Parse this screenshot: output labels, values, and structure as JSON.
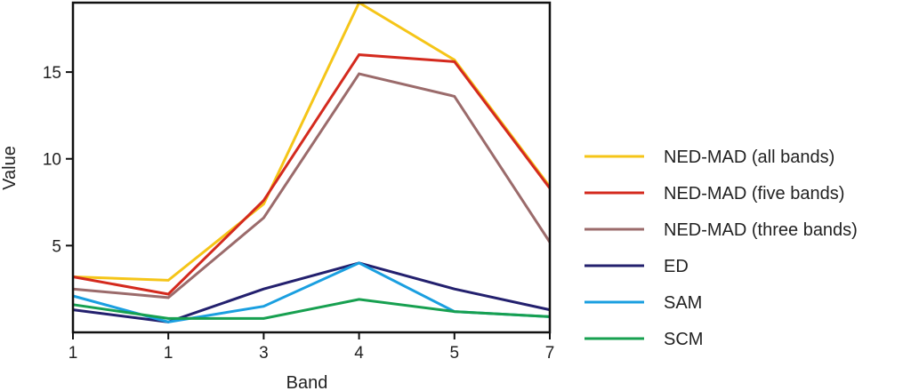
{
  "chart_data": {
    "type": "line",
    "xlabel": "Band",
    "ylabel": "Value",
    "categories": [
      "1",
      "1",
      "3",
      "4",
      "5",
      "7"
    ],
    "y_ticks": [
      5,
      10,
      15
    ],
    "ylim": [
      0,
      19
    ],
    "grid": false,
    "legend_position": "right",
    "series": [
      {
        "name": "NED-MAD (all bands)",
        "color": "#f5c518",
        "values": [
          3.2,
          3.0,
          7.4,
          19.0,
          15.7,
          8.4
        ]
      },
      {
        "name": "NED-MAD (five bands)",
        "color": "#d42a1e",
        "values": [
          3.2,
          2.2,
          7.6,
          16.0,
          15.6,
          8.3
        ]
      },
      {
        "name": "NED-MAD (three bands)",
        "color": "#9b6b6b",
        "values": [
          2.5,
          2.0,
          6.6,
          14.9,
          13.6,
          5.2
        ]
      },
      {
        "name": "ED",
        "color": "#23206e",
        "values": [
          1.3,
          0.6,
          2.5,
          4.0,
          2.5,
          1.3
        ]
      },
      {
        "name": "SAM",
        "color": "#1a9fe0",
        "values": [
          2.1,
          0.6,
          1.5,
          4.0,
          1.2,
          0.9
        ]
      },
      {
        "name": "SCM",
        "color": "#17a050",
        "values": [
          1.6,
          0.8,
          0.8,
          1.9,
          1.2,
          0.9
        ]
      }
    ]
  }
}
